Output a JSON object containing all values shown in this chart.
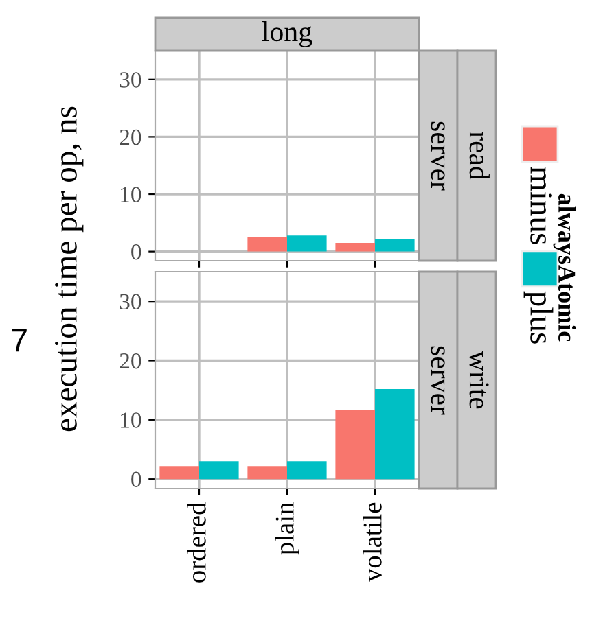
{
  "chart_data": [
    {
      "type": "bar",
      "title": "long",
      "ylabel": "execution time per op, ns",
      "legend_title": "alwaysAtomic",
      "legend": "right",
      "annotations": [
        "server",
        "read",
        "7"
      ],
      "categories": [
        null,
        null,
        null
      ],
      "series": [
        {
          "name": "minus",
          "color": "#f8766d",
          "values": [
            null,
            2.5,
            1.5
          ]
        },
        {
          "name": "plus",
          "color": "#00bfc4",
          "values": [
            null,
            2.8,
            2.2
          ]
        }
      ],
      "ylim": [
        -1.6,
        35
      ],
      "yticks": [
        0,
        10,
        20,
        30
      ],
      "grid": true
    },
    {
      "type": "bar",
      "annotations": [
        "server",
        "write"
      ],
      "categories": [
        "ordered",
        "plain",
        "volatile"
      ],
      "series": [
        {
          "color": "#f8766d",
          "values": [
            2.2,
            2.2,
            11.7
          ]
        },
        {
          "color": "#00bfc4",
          "values": [
            3.0,
            3.0,
            15.2
          ]
        }
      ],
      "ylim": [
        -1.6,
        35
      ],
      "yticks": [
        0,
        10,
        20,
        30
      ],
      "grid": true
    }
  ]
}
